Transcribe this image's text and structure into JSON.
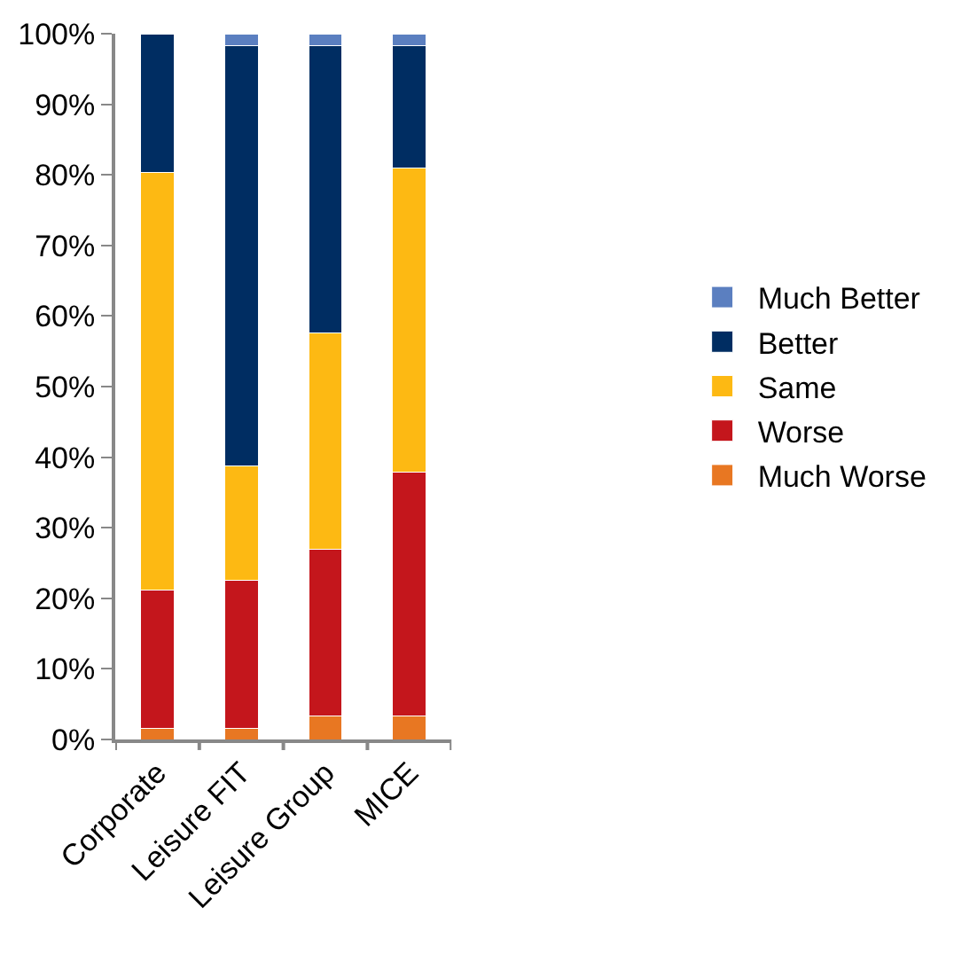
{
  "chart_data": {
    "type": "bar",
    "stacked": true,
    "categories": [
      "Corporate",
      "Leisure FIT",
      "Leisure Group",
      "MICE"
    ],
    "series": [
      {
        "name": "Much Worse",
        "color": "#e87722",
        "values": [
          1.6,
          1.6,
          3.3,
          3.3
        ]
      },
      {
        "name": "Worse",
        "color": "#c4161c",
        "values": [
          19.6,
          20.9,
          23.7,
          34.6
        ]
      },
      {
        "name": "Same",
        "color": "#fdb913",
        "values": [
          59.1,
          16.2,
          30.6,
          43.1
        ]
      },
      {
        "name": "Better",
        "color": "#002d62",
        "values": [
          19.7,
          59.6,
          40.7,
          17.3
        ]
      },
      {
        "name": "Much Better",
        "color": "#5b7fc0",
        "values": [
          null,
          1.7,
          1.7,
          1.7
        ]
      }
    ],
    "ylim": [
      0,
      100
    ],
    "yticks": [
      {
        "value": 0,
        "label": "0%"
      },
      {
        "value": 10,
        "label": "10%"
      },
      {
        "value": 20,
        "label": "20%"
      },
      {
        "value": 30,
        "label": "30%"
      },
      {
        "value": 40,
        "label": "40%"
      },
      {
        "value": 50,
        "label": "50%"
      },
      {
        "value": 60,
        "label": "60%"
      },
      {
        "value": 70,
        "label": "70%"
      },
      {
        "value": 80,
        "label": "80%"
      },
      {
        "value": 90,
        "label": "90%"
      },
      {
        "value": 100,
        "label": "100%"
      }
    ],
    "legend": "right"
  }
}
